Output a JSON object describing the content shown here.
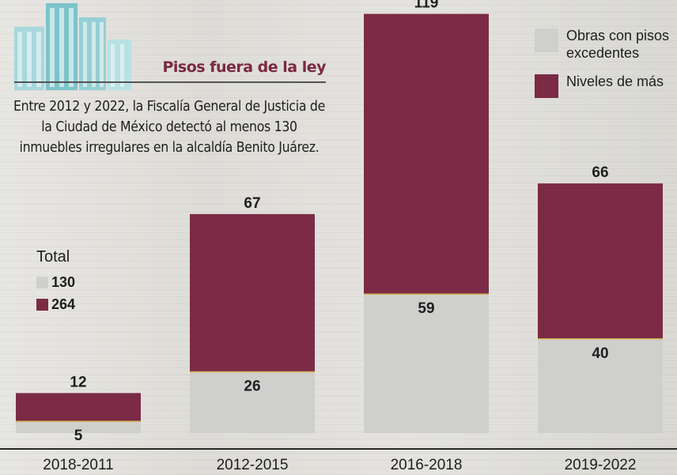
{
  "headline": "Pisos fuera de la ley",
  "intro": "Entre 2012 y 2022, la Fiscalía General de Justicia de la Ciudad de México detectó al menos 130 inmuebles irregulares en la alcaldía Benito Juárez.",
  "totals": {
    "title": "Total",
    "obras": "130",
    "niveles": "264"
  },
  "colors": {
    "obras": "#cfd0cd",
    "niveles": "#7b2b46",
    "label": "#1e1e1e"
  },
  "chart_data": {
    "type": "bar",
    "stacked": true,
    "categories": [
      "2018-2011",
      "2012-2015",
      "2016-2018",
      "2019-2022"
    ],
    "series": [
      {
        "name": "Obras con pisos excedentes",
        "values": [
          5,
          26,
          59,
          40
        ]
      },
      {
        "name": "Niveles de más",
        "values": [
          12,
          67,
          119,
          66
        ]
      }
    ],
    "title": "",
    "xlabel": "",
    "ylabel": "",
    "legend": "top-right",
    "grid": false
  }
}
